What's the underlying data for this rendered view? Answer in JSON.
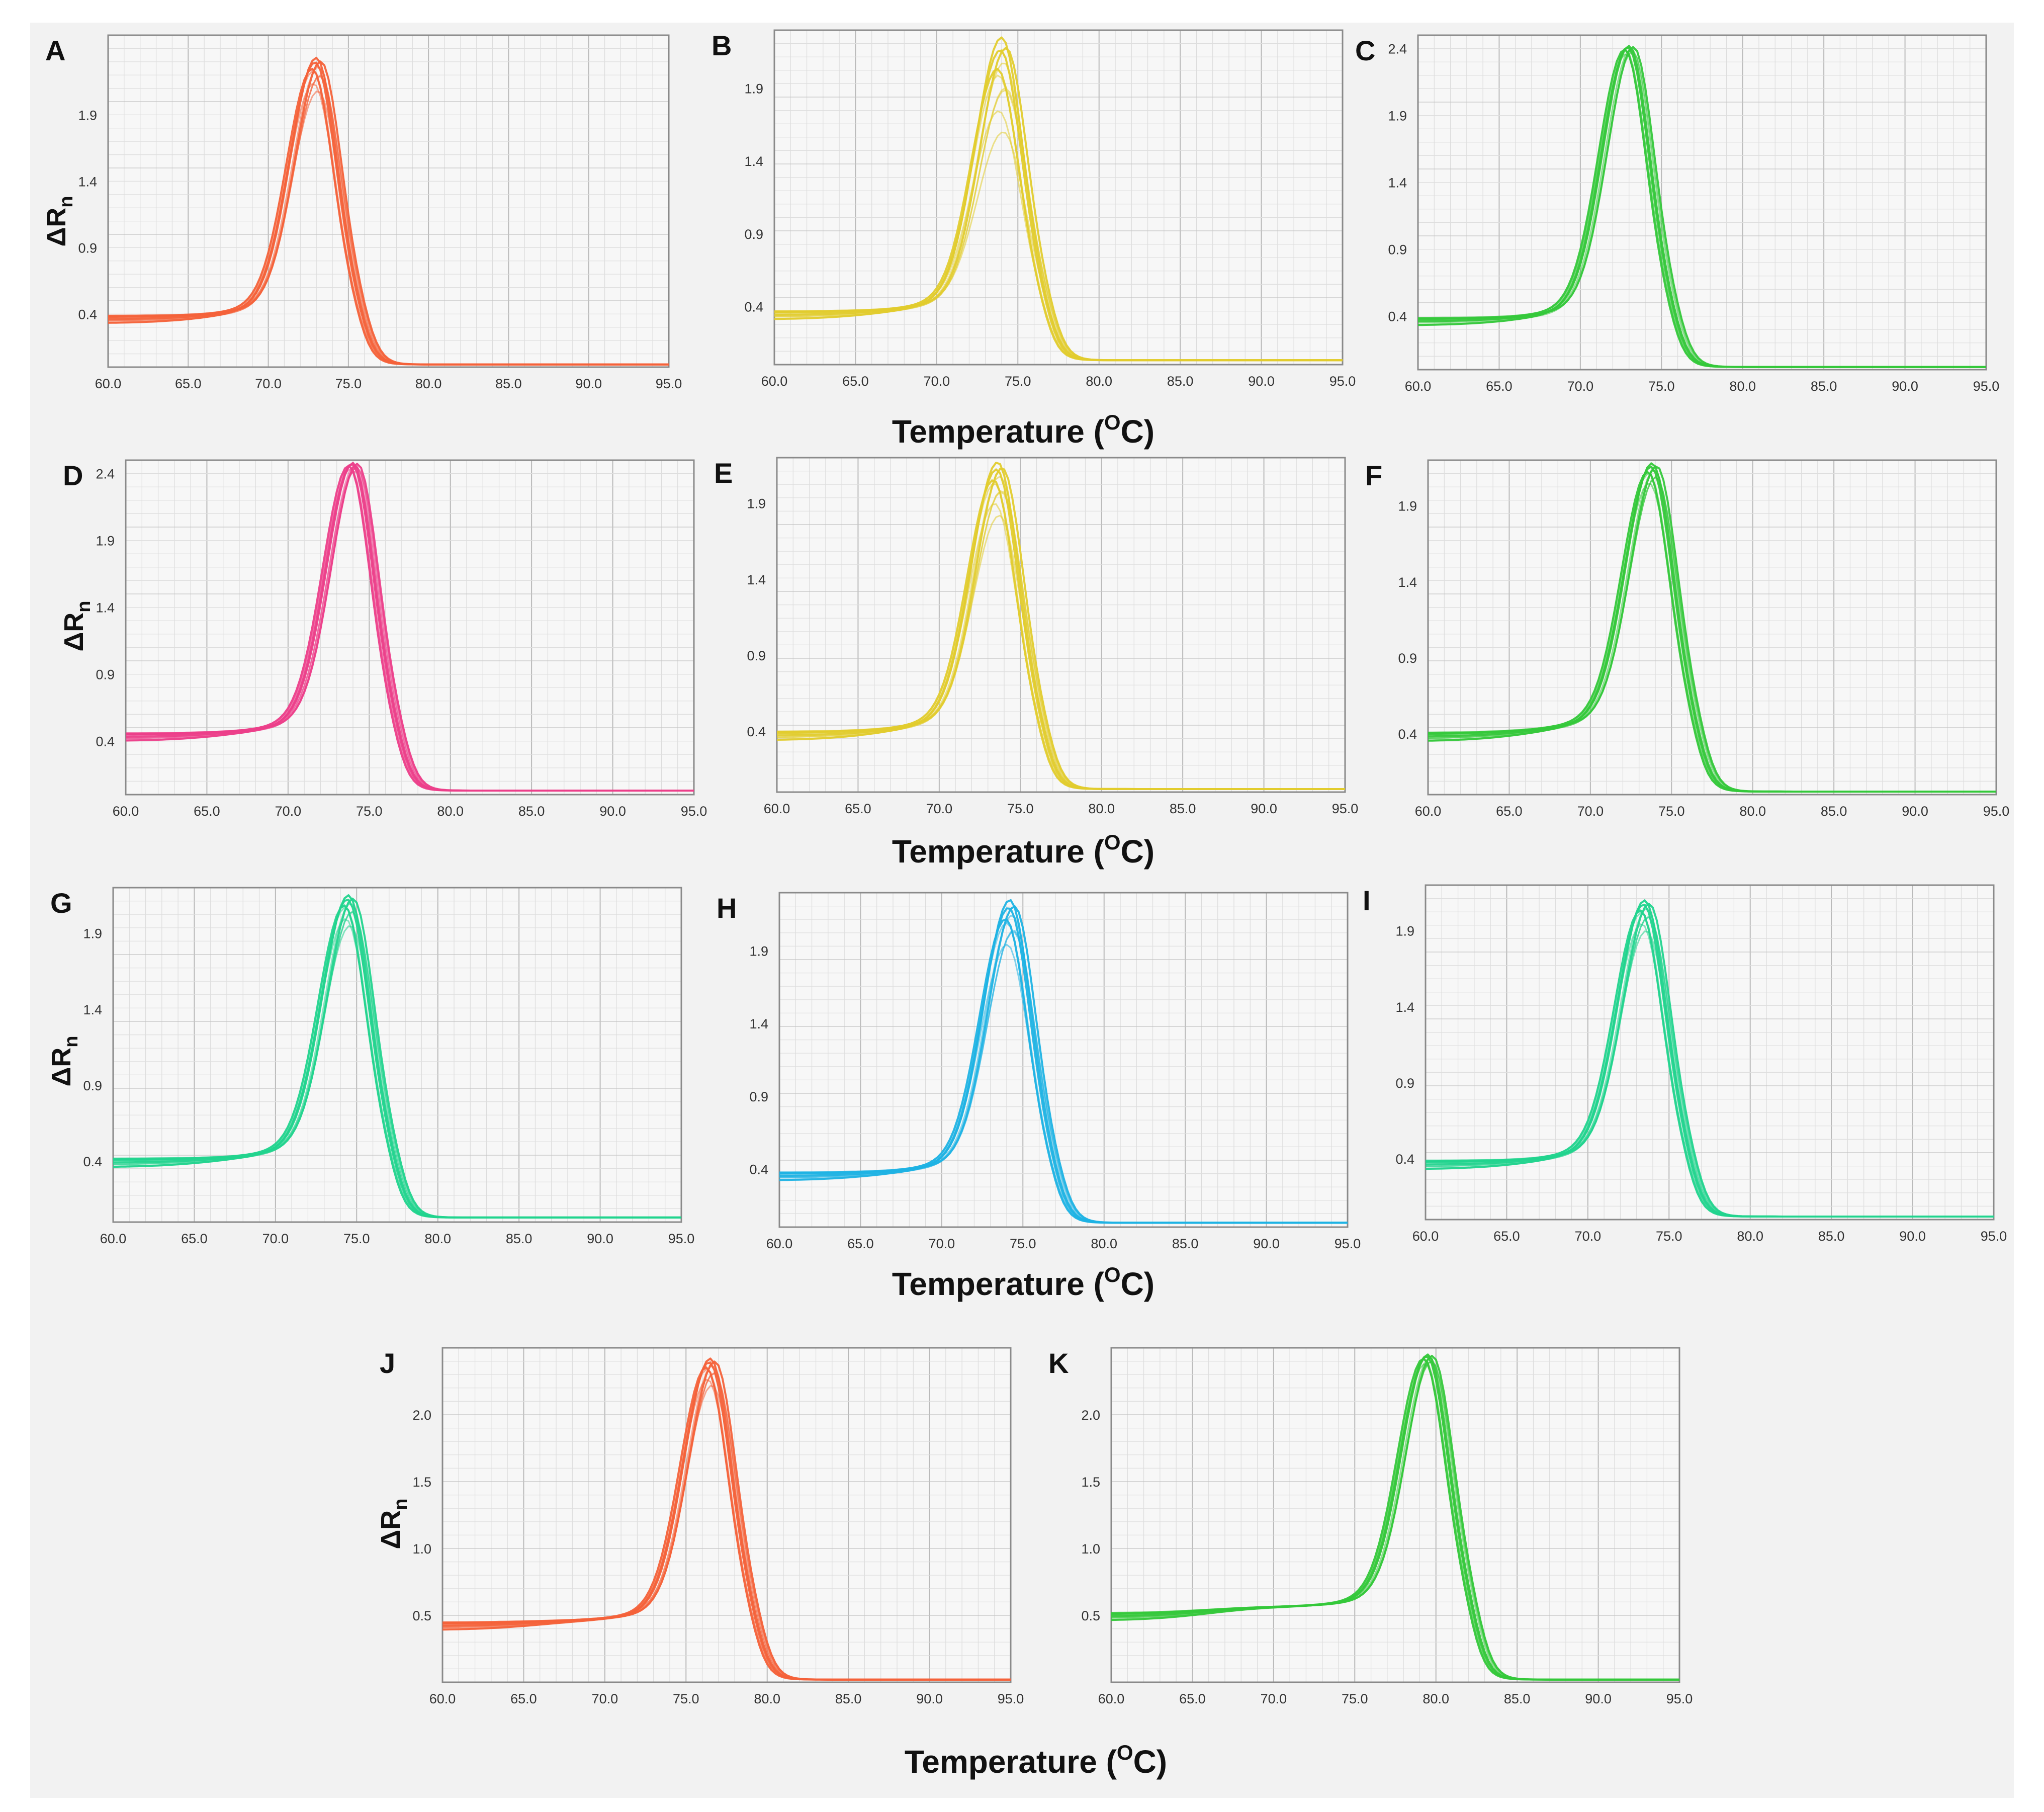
{
  "figure": {
    "background": "#f2f2f2",
    "x_axis_title": "Temperature (",
    "x_axis_title_sup": "O",
    "x_axis_title_end": "C)",
    "y_axis_label": "ΔR",
    "y_axis_label_sub": "n"
  },
  "chart_data": [
    {
      "id": "A",
      "type": "line",
      "color": "#f4623a",
      "xlabel_ticks": [
        "60.0",
        "65.0",
        "70.0",
        "75.0",
        "80.0",
        "85.0",
        "90.0",
        "95.0"
      ],
      "xlim": [
        60,
        95
      ],
      "ylim": [
        0,
        2.5
      ],
      "ytick_values": [
        0.4,
        0.9,
        1.4,
        1.9
      ],
      "ytick_labels": [
        "0.4",
        "0.9",
        "1.4",
        "1.9"
      ],
      "has_ylabel": true,
      "peak_x": 73.0,
      "peak_y": 2.33,
      "n_curves": 10,
      "curves": {
        "baseline_start": 0.34,
        "plateau": 0.38,
        "tail": 0.02,
        "peak_spread": 0.25
      },
      "series": [
        {
          "name": "melt curve replicates",
          "x": [
            60,
            62.5,
            65,
            67.5,
            70,
            71.5,
            73,
            74.5,
            76,
            78,
            80,
            85,
            90,
            95
          ],
          "y": [
            0.34,
            0.37,
            0.39,
            0.44,
            0.76,
            1.4,
            2.33,
            1.6,
            0.5,
            0.1,
            0.03,
            0.02,
            0.02,
            0.02
          ]
        }
      ]
    },
    {
      "id": "B",
      "type": "line",
      "color": "#e2cc2e",
      "xlabel_ticks": [
        "60.0",
        "65.0",
        "70.0",
        "75.0",
        "80.0",
        "85.0",
        "90.0",
        "95.0"
      ],
      "xlim": [
        60,
        95
      ],
      "ylim": [
        0,
        2.3
      ],
      "ytick_values": [
        0.4,
        0.9,
        1.4,
        1.9
      ],
      "ytick_labels": [
        "0.4",
        "0.9",
        "1.4",
        "1.9"
      ],
      "has_ylabel": false,
      "peak_x": 74.0,
      "peak_y": 2.25,
      "n_curves": 10,
      "curves": {
        "baseline_start": 0.31,
        "plateau": 0.35,
        "tail": 0.03,
        "peak_spread": 0.65
      },
      "series": [
        {
          "name": "melt curve replicates",
          "x": [
            60,
            62.5,
            65,
            67.5,
            70,
            72,
            74,
            75.5,
            77,
            79,
            81,
            85,
            90,
            95
          ],
          "y": [
            0.31,
            0.35,
            0.35,
            0.37,
            0.55,
            1.2,
            2.25,
            1.7,
            0.6,
            0.12,
            0.04,
            0.03,
            0.03,
            0.03
          ]
        }
      ]
    },
    {
      "id": "C",
      "type": "line",
      "color": "#35c83b",
      "xlabel_ticks": [
        "60.0",
        "65.0",
        "70.0",
        "75.0",
        "80.0",
        "85.0",
        "90.0",
        "95.0"
      ],
      "xlim": [
        60,
        95
      ],
      "ylim": [
        0,
        2.5
      ],
      "ytick_values": [
        0.4,
        0.9,
        1.4,
        1.9,
        2.4
      ],
      "ytick_labels": [
        "0.4",
        "0.9",
        "1.4",
        "1.9",
        "2.4"
      ],
      "has_ylabel": false,
      "peak_x": 73.0,
      "peak_y": 2.42,
      "n_curves": 8,
      "curves": {
        "baseline_start": 0.34,
        "plateau": 0.38,
        "tail": 0.02,
        "peak_spread": 0.06
      },
      "series": [
        {
          "name": "melt curve replicates",
          "x": [
            60,
            62.5,
            65,
            67.5,
            70,
            71.5,
            73,
            74.5,
            76,
            78,
            80,
            85,
            90,
            95
          ],
          "y": [
            0.34,
            0.36,
            0.38,
            0.44,
            0.8,
            1.6,
            2.42,
            1.7,
            0.55,
            0.1,
            0.03,
            0.02,
            0.02,
            0.02
          ]
        }
      ]
    },
    {
      "id": "D",
      "type": "line",
      "color": "#ec3f8a",
      "xlabel_ticks": [
        "60.0",
        "65.0",
        "70.0",
        "75.0",
        "80.0",
        "85.0",
        "90.0",
        "95.0"
      ],
      "xlim": [
        60,
        95
      ],
      "ylim": [
        0,
        2.5
      ],
      "ytick_values": [
        0.4,
        0.9,
        1.4,
        1.9,
        2.4
      ],
      "ytick_labels": [
        "0.4",
        "0.9",
        "1.4",
        "1.9",
        "2.4"
      ],
      "has_ylabel": true,
      "peak_x": 74.0,
      "peak_y": 2.48,
      "n_curves": 10,
      "curves": {
        "baseline_start": 0.4,
        "plateau": 0.45,
        "tail": 0.03,
        "peak_spread": 0.06
      },
      "series": [
        {
          "name": "melt curve replicates",
          "x": [
            60,
            62.5,
            65,
            67.5,
            70,
            72,
            74,
            75.5,
            77,
            79,
            81,
            85,
            90,
            95
          ],
          "y": [
            0.4,
            0.41,
            0.42,
            0.48,
            0.65,
            1.4,
            2.48,
            1.9,
            0.8,
            0.2,
            0.06,
            0.03,
            0.03,
            0.03
          ]
        }
      ]
    },
    {
      "id": "E",
      "type": "line",
      "color": "#e2cc2e",
      "xlabel_ticks": [
        "60.0",
        "65.0",
        "70.0",
        "75.0",
        "80.0",
        "85.0",
        "90.0",
        "95.0"
      ],
      "xlim": [
        60,
        95
      ],
      "ylim": [
        0,
        2.2
      ],
      "ytick_values": [
        0.4,
        0.9,
        1.4,
        1.9
      ],
      "ytick_labels": [
        "0.4",
        "0.9",
        "1.4",
        "1.9"
      ],
      "has_ylabel": false,
      "peak_x": 73.6,
      "peak_y": 2.17,
      "n_curves": 10,
      "curves": {
        "baseline_start": 0.35,
        "plateau": 0.4,
        "tail": 0.02,
        "peak_spread": 0.35
      },
      "series": [
        {
          "name": "melt curve replicates",
          "x": [
            60,
            62.5,
            65,
            67.5,
            70,
            72,
            73.6,
            75,
            76.5,
            78,
            80,
            85,
            90,
            95
          ],
          "y": [
            0.35,
            0.4,
            0.4,
            0.44,
            0.6,
            1.3,
            2.17,
            1.6,
            0.5,
            0.1,
            0.03,
            0.02,
            0.02,
            0.02
          ]
        }
      ]
    },
    {
      "id": "F",
      "type": "line",
      "color": "#35c83b",
      "xlabel_ticks": [
        "60.0",
        "65.0",
        "70.0",
        "75.0",
        "80.0",
        "85.0",
        "90.0",
        "95.0"
      ],
      "xlim": [
        60,
        95
      ],
      "ylim": [
        0,
        2.2
      ],
      "ytick_values": [
        0.4,
        0.9,
        1.4,
        1.9
      ],
      "ytick_labels": [
        "0.4",
        "0.9",
        "1.4",
        "1.9"
      ],
      "has_ylabel": false,
      "peak_x": 73.8,
      "peak_y": 2.18,
      "n_curves": 9,
      "curves": {
        "baseline_start": 0.36,
        "plateau": 0.42,
        "tail": 0.02,
        "peak_spread": 0.15
      },
      "series": [
        {
          "name": "melt curve replicates",
          "x": [
            60,
            62.5,
            65,
            67.5,
            70,
            72,
            73.8,
            75,
            76.5,
            78,
            80,
            85,
            90,
            95
          ],
          "y": [
            0.36,
            0.4,
            0.42,
            0.46,
            0.62,
            1.3,
            2.18,
            1.7,
            0.6,
            0.12,
            0.06,
            0.02,
            0.02,
            0.02
          ]
        }
      ]
    },
    {
      "id": "G",
      "type": "line",
      "color": "#22d48e",
      "xlabel_ticks": [
        "60.0",
        "65.0",
        "70.0",
        "75.0",
        "80.0",
        "85.0",
        "90.0",
        "95.0"
      ],
      "xlim": [
        60,
        95
      ],
      "ylim": [
        0,
        2.2
      ],
      "ytick_values": [
        0.4,
        0.9,
        1.4,
        1.9
      ],
      "ytick_labels": [
        "0.4",
        "0.9",
        "1.4",
        "1.9"
      ],
      "has_ylabel": true,
      "peak_x": 74.5,
      "peak_y": 2.15,
      "n_curves": 10,
      "curves": {
        "baseline_start": 0.36,
        "plateau": 0.4,
        "tail": 0.03,
        "peak_spread": 0.2
      },
      "series": [
        {
          "name": "melt curve replicates",
          "x": [
            60,
            62.5,
            65,
            67.5,
            70,
            72.5,
            74.5,
            76,
            77.5,
            79,
            81,
            85,
            90,
            95
          ],
          "y": [
            0.36,
            0.38,
            0.4,
            0.42,
            0.55,
            1.4,
            2.15,
            1.5,
            0.5,
            0.15,
            0.06,
            0.03,
            0.03,
            0.03
          ]
        }
      ]
    },
    {
      "id": "H",
      "type": "line",
      "color": "#1fb3e4",
      "xlabel_ticks": [
        "60.0",
        "65.0",
        "70.0",
        "75.0",
        "80.0",
        "85.0",
        "90.0",
        "95.0"
      ],
      "xlim": [
        60,
        95
      ],
      "ylim": [
        0,
        2.3
      ],
      "ytick_values": [
        0.4,
        0.9,
        1.4,
        1.9
      ],
      "ytick_labels": [
        "0.4",
        "0.9",
        "1.4",
        "1.9"
      ],
      "has_ylabel": false,
      "peak_x": 74.2,
      "peak_y": 2.25,
      "n_curves": 9,
      "curves": {
        "baseline_start": 0.32,
        "plateau": 0.36,
        "tail": 0.03,
        "peak_spread": 0.35
      },
      "series": [
        {
          "name": "melt curve replicates",
          "x": [
            60,
            62.5,
            65,
            67.5,
            70,
            72,
            74.2,
            75.5,
            77,
            78.5,
            80,
            85,
            90,
            95
          ],
          "y": [
            0.32,
            0.33,
            0.34,
            0.36,
            0.45,
            1.3,
            2.25,
            1.6,
            0.5,
            0.1,
            0.04,
            0.03,
            0.03,
            0.03
          ]
        }
      ]
    },
    {
      "id": "I",
      "type": "line",
      "color": "#22d48e",
      "xlabel_ticks": [
        "60.0",
        "65.0",
        "70.0",
        "75.0",
        "80.0",
        "85.0",
        "90.0",
        "95.0"
      ],
      "xlim": [
        60,
        95
      ],
      "ylim": [
        0,
        2.2
      ],
      "ytick_values": [
        0.4,
        0.9,
        1.4,
        1.9
      ],
      "ytick_labels": [
        "0.4",
        "0.9",
        "1.4",
        "1.9"
      ],
      "has_ylabel": false,
      "peak_x": 73.5,
      "peak_y": 2.1,
      "n_curves": 10,
      "curves": {
        "baseline_start": 0.34,
        "plateau": 0.38,
        "tail": 0.02,
        "peak_spread": 0.2
      },
      "series": [
        {
          "name": "melt curve replicates",
          "x": [
            60,
            62.5,
            65,
            67.5,
            70,
            71.5,
            73.5,
            75,
            76.5,
            78,
            80,
            85,
            90,
            95
          ],
          "y": [
            0.34,
            0.38,
            0.38,
            0.4,
            0.55,
            1.2,
            2.1,
            1.5,
            0.5,
            0.1,
            0.03,
            0.02,
            0.02,
            0.02
          ]
        }
      ]
    },
    {
      "id": "J",
      "type": "line",
      "color": "#f4623a",
      "xlabel_ticks": [
        "60.0",
        "65.0",
        "70.0",
        "75.0",
        "80.0",
        "85.0",
        "90.0",
        "95.0"
      ],
      "xlim": [
        60,
        95
      ],
      "ylim": [
        0,
        2.5
      ],
      "ytick_values": [
        0.5,
        1.0,
        1.5,
        2.0
      ],
      "ytick_labels": [
        "0.5",
        "1.0",
        "1.5",
        "2.0"
      ],
      "has_ylabel": true,
      "peak_x": 76.5,
      "peak_y": 2.42,
      "n_curves": 10,
      "curves": {
        "baseline_start": 0.4,
        "plateau": 0.45,
        "tail": 0.02,
        "peak_spread": 0.2
      },
      "series": [
        {
          "name": "melt curve replicates",
          "x": [
            60,
            62.5,
            65,
            67.5,
            70,
            72.5,
            74.5,
            76.5,
            78,
            79.5,
            81,
            85,
            90,
            95
          ],
          "y": [
            0.4,
            0.42,
            0.42,
            0.45,
            0.5,
            0.8,
            1.6,
            2.42,
            1.3,
            0.3,
            0.06,
            0.02,
            0.02,
            0.02
          ]
        }
      ]
    },
    {
      "id": "K",
      "type": "line",
      "color": "#35c83b",
      "xlabel_ticks": [
        "60.0",
        "65.0",
        "70.0",
        "75.0",
        "80.0",
        "85.0",
        "90.0",
        "95.0"
      ],
      "xlim": [
        60,
        95
      ],
      "ylim": [
        0,
        2.5
      ],
      "ytick_values": [
        0.5,
        1.0,
        1.5,
        2.0
      ],
      "ytick_labels": [
        "0.5",
        "1.0",
        "1.5",
        "2.0"
      ],
      "has_ylabel": false,
      "peak_x": 79.5,
      "peak_y": 2.45,
      "n_curves": 9,
      "curves": {
        "baseline_start": 0.47,
        "plateau": 0.55,
        "tail": 0.02,
        "peak_spread": 0.08
      },
      "series": [
        {
          "name": "melt curve replicates",
          "x": [
            60,
            62.5,
            65,
            67.5,
            70,
            72.5,
            75,
            77.5,
            79.5,
            81,
            82.5,
            85,
            90,
            95
          ],
          "y": [
            0.47,
            0.5,
            0.52,
            0.54,
            0.56,
            0.6,
            0.9,
            1.7,
            2.45,
            1.5,
            0.3,
            0.06,
            0.03,
            0.02
          ]
        }
      ]
    }
  ]
}
